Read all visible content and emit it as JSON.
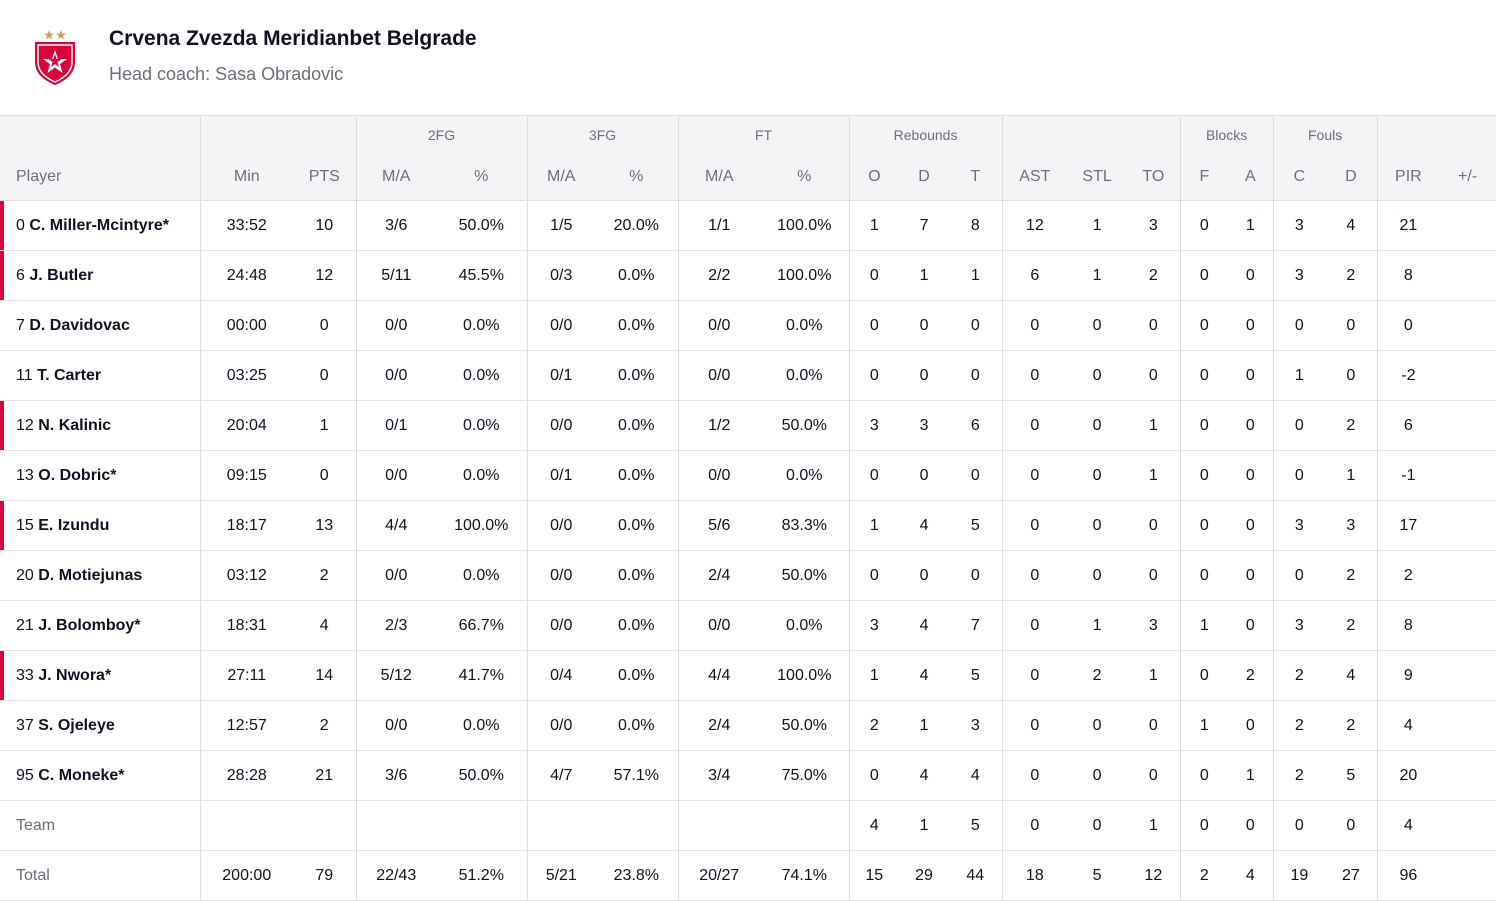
{
  "team": {
    "name": "Crvena Zvezda Meridianbet Belgrade",
    "coach": "Head coach: Sasa Obradovic",
    "logo_icon": "crvena-zvezda-shield-logo",
    "accent_color": "#d7063b"
  },
  "groups": {
    "fg2": "2FG",
    "fg3": "3FG",
    "ft": "FT",
    "rebounds": "Rebounds",
    "blocks": "Blocks",
    "fouls": "Fouls"
  },
  "columns": {
    "player": "Player",
    "min": "Min",
    "pts": "PTS",
    "fg2_ma": "M/A",
    "fg2_pct": "%",
    "fg3_ma": "M/A",
    "fg3_pct": "%",
    "ft_ma": "M/A",
    "ft_pct": "%",
    "reb_o": "O",
    "reb_d": "D",
    "reb_t": "T",
    "ast": "AST",
    "stl": "STL",
    "to": "TO",
    "blk_f": "F",
    "blk_a": "A",
    "foul_c": "C",
    "foul_d": "D",
    "pir": "PIR",
    "pm": "+/-"
  },
  "players": [
    {
      "num": "0",
      "name": "C. Miller-Mcintyre*",
      "on_court": true,
      "min": "33:52",
      "pts": "10",
      "fg2_ma": "3/6",
      "fg2_pct": "50.0%",
      "fg3_ma": "1/5",
      "fg3_pct": "20.0%",
      "ft_ma": "1/1",
      "ft_pct": "100.0%",
      "reb_o": "1",
      "reb_d": "7",
      "reb_t": "8",
      "ast": "12",
      "stl": "1",
      "to": "3",
      "blk_f": "0",
      "blk_a": "1",
      "foul_c": "3",
      "foul_d": "4",
      "pir": "21",
      "pm": ""
    },
    {
      "num": "6",
      "name": "J. Butler",
      "on_court": true,
      "min": "24:48",
      "pts": "12",
      "fg2_ma": "5/11",
      "fg2_pct": "45.5%",
      "fg3_ma": "0/3",
      "fg3_pct": "0.0%",
      "ft_ma": "2/2",
      "ft_pct": "100.0%",
      "reb_o": "0",
      "reb_d": "1",
      "reb_t": "1",
      "ast": "6",
      "stl": "1",
      "to": "2",
      "blk_f": "0",
      "blk_a": "0",
      "foul_c": "3",
      "foul_d": "2",
      "pir": "8",
      "pm": ""
    },
    {
      "num": "7",
      "name": "D. Davidovac",
      "on_court": false,
      "min": "00:00",
      "pts": "0",
      "fg2_ma": "0/0",
      "fg2_pct": "0.0%",
      "fg3_ma": "0/0",
      "fg3_pct": "0.0%",
      "ft_ma": "0/0",
      "ft_pct": "0.0%",
      "reb_o": "0",
      "reb_d": "0",
      "reb_t": "0",
      "ast": "0",
      "stl": "0",
      "to": "0",
      "blk_f": "0",
      "blk_a": "0",
      "foul_c": "0",
      "foul_d": "0",
      "pir": "0",
      "pm": ""
    },
    {
      "num": "11",
      "name": "T. Carter",
      "on_court": false,
      "min": "03:25",
      "pts": "0",
      "fg2_ma": "0/0",
      "fg2_pct": "0.0%",
      "fg3_ma": "0/1",
      "fg3_pct": "0.0%",
      "ft_ma": "0/0",
      "ft_pct": "0.0%",
      "reb_o": "0",
      "reb_d": "0",
      "reb_t": "0",
      "ast": "0",
      "stl": "0",
      "to": "0",
      "blk_f": "0",
      "blk_a": "0",
      "foul_c": "1",
      "foul_d": "0",
      "pir": "-2",
      "pm": ""
    },
    {
      "num": "12",
      "name": "N. Kalinic",
      "on_court": true,
      "min": "20:04",
      "pts": "1",
      "fg2_ma": "0/1",
      "fg2_pct": "0.0%",
      "fg3_ma": "0/0",
      "fg3_pct": "0.0%",
      "ft_ma": "1/2",
      "ft_pct": "50.0%",
      "reb_o": "3",
      "reb_d": "3",
      "reb_t": "6",
      "ast": "0",
      "stl": "0",
      "to": "1",
      "blk_f": "0",
      "blk_a": "0",
      "foul_c": "0",
      "foul_d": "2",
      "pir": "6",
      "pm": ""
    },
    {
      "num": "13",
      "name": "O. Dobric*",
      "on_court": false,
      "min": "09:15",
      "pts": "0",
      "fg2_ma": "0/0",
      "fg2_pct": "0.0%",
      "fg3_ma": "0/1",
      "fg3_pct": "0.0%",
      "ft_ma": "0/0",
      "ft_pct": "0.0%",
      "reb_o": "0",
      "reb_d": "0",
      "reb_t": "0",
      "ast": "0",
      "stl": "0",
      "to": "1",
      "blk_f": "0",
      "blk_a": "0",
      "foul_c": "0",
      "foul_d": "1",
      "pir": "-1",
      "pm": ""
    },
    {
      "num": "15",
      "name": "E. Izundu",
      "on_court": true,
      "min": "18:17",
      "pts": "13",
      "fg2_ma": "4/4",
      "fg2_pct": "100.0%",
      "fg3_ma": "0/0",
      "fg3_pct": "0.0%",
      "ft_ma": "5/6",
      "ft_pct": "83.3%",
      "reb_o": "1",
      "reb_d": "4",
      "reb_t": "5",
      "ast": "0",
      "stl": "0",
      "to": "0",
      "blk_f": "0",
      "blk_a": "0",
      "foul_c": "3",
      "foul_d": "3",
      "pir": "17",
      "pm": ""
    },
    {
      "num": "20",
      "name": "D. Motiejunas",
      "on_court": false,
      "min": "03:12",
      "pts": "2",
      "fg2_ma": "0/0",
      "fg2_pct": "0.0%",
      "fg3_ma": "0/0",
      "fg3_pct": "0.0%",
      "ft_ma": "2/4",
      "ft_pct": "50.0%",
      "reb_o": "0",
      "reb_d": "0",
      "reb_t": "0",
      "ast": "0",
      "stl": "0",
      "to": "0",
      "blk_f": "0",
      "blk_a": "0",
      "foul_c": "0",
      "foul_d": "2",
      "pir": "2",
      "pm": ""
    },
    {
      "num": "21",
      "name": "J. Bolomboy*",
      "on_court": false,
      "min": "18:31",
      "pts": "4",
      "fg2_ma": "2/3",
      "fg2_pct": "66.7%",
      "fg3_ma": "0/0",
      "fg3_pct": "0.0%",
      "ft_ma": "0/0",
      "ft_pct": "0.0%",
      "reb_o": "3",
      "reb_d": "4",
      "reb_t": "7",
      "ast": "0",
      "stl": "1",
      "to": "3",
      "blk_f": "1",
      "blk_a": "0",
      "foul_c": "3",
      "foul_d": "2",
      "pir": "8",
      "pm": ""
    },
    {
      "num": "33",
      "name": "J. Nwora*",
      "on_court": true,
      "min": "27:11",
      "pts": "14",
      "fg2_ma": "5/12",
      "fg2_pct": "41.7%",
      "fg3_ma": "0/4",
      "fg3_pct": "0.0%",
      "ft_ma": "4/4",
      "ft_pct": "100.0%",
      "reb_o": "1",
      "reb_d": "4",
      "reb_t": "5",
      "ast": "0",
      "stl": "2",
      "to": "1",
      "blk_f": "0",
      "blk_a": "2",
      "foul_c": "2",
      "foul_d": "4",
      "pir": "9",
      "pm": ""
    },
    {
      "num": "37",
      "name": "S. Ojeleye",
      "on_court": false,
      "min": "12:57",
      "pts": "2",
      "fg2_ma": "0/0",
      "fg2_pct": "0.0%",
      "fg3_ma": "0/0",
      "fg3_pct": "0.0%",
      "ft_ma": "2/4",
      "ft_pct": "50.0%",
      "reb_o": "2",
      "reb_d": "1",
      "reb_t": "3",
      "ast": "0",
      "stl": "0",
      "to": "0",
      "blk_f": "1",
      "blk_a": "0",
      "foul_c": "2",
      "foul_d": "2",
      "pir": "4",
      "pm": ""
    },
    {
      "num": "95",
      "name": "C. Moneke*",
      "on_court": false,
      "min": "28:28",
      "pts": "21",
      "fg2_ma": "3/6",
      "fg2_pct": "50.0%",
      "fg3_ma": "4/7",
      "fg3_pct": "57.1%",
      "ft_ma": "3/4",
      "ft_pct": "75.0%",
      "reb_o": "0",
      "reb_d": "4",
      "reb_t": "4",
      "ast": "0",
      "stl": "0",
      "to": "0",
      "blk_f": "0",
      "blk_a": "1",
      "foul_c": "2",
      "foul_d": "5",
      "pir": "20",
      "pm": ""
    }
  ],
  "team_row": {
    "label": "Team",
    "min": "",
    "pts": "",
    "fg2_ma": "",
    "fg2_pct": "",
    "fg3_ma": "",
    "fg3_pct": "",
    "ft_ma": "",
    "ft_pct": "",
    "reb_o": "4",
    "reb_d": "1",
    "reb_t": "5",
    "ast": "0",
    "stl": "0",
    "to": "1",
    "blk_f": "0",
    "blk_a": "0",
    "foul_c": "0",
    "foul_d": "0",
    "pir": "4",
    "pm": ""
  },
  "total_row": {
    "label": "Total",
    "min": "200:00",
    "pts": "79",
    "fg2_ma": "22/43",
    "fg2_pct": "51.2%",
    "fg3_ma": "5/21",
    "fg3_pct": "23.8%",
    "ft_ma": "20/27",
    "ft_pct": "74.1%",
    "reb_o": "15",
    "reb_d": "29",
    "reb_t": "44",
    "ast": "18",
    "stl": "5",
    "to": "12",
    "blk_f": "2",
    "blk_a": "4",
    "foul_c": "19",
    "foul_d": "27",
    "pir": "96",
    "pm": ""
  }
}
